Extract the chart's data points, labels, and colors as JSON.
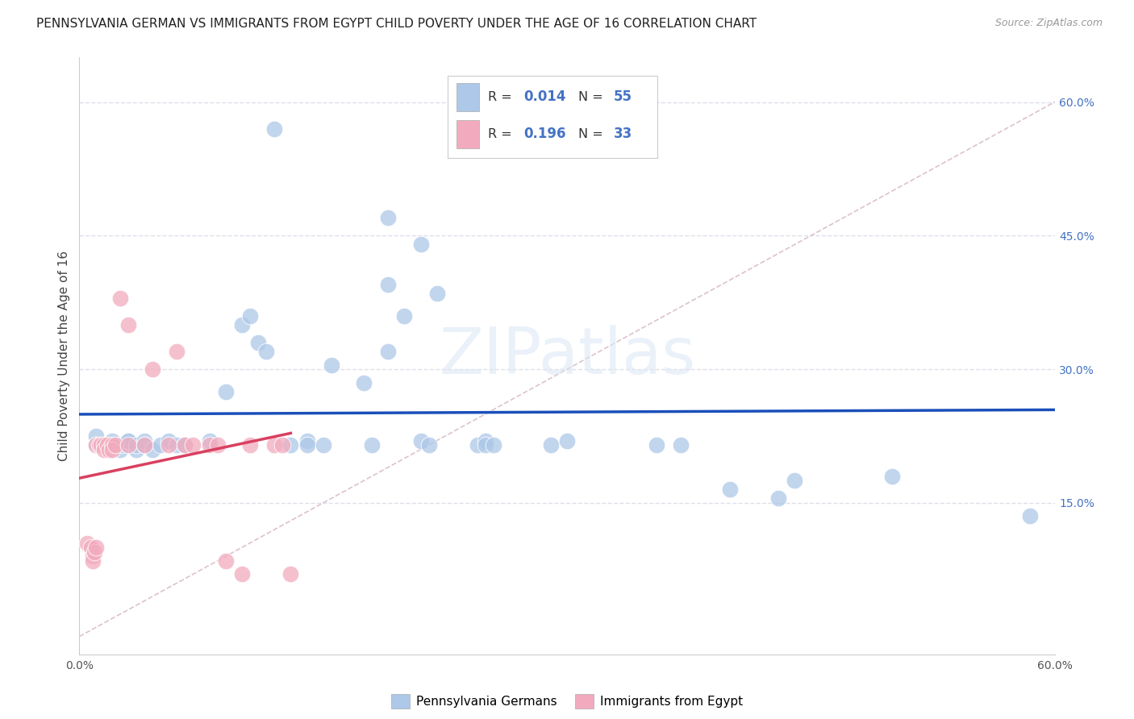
{
  "title": "PENNSYLVANIA GERMAN VS IMMIGRANTS FROM EGYPT CHILD POVERTY UNDER THE AGE OF 16 CORRELATION CHART",
  "source": "Source: ZipAtlas.com",
  "ylabel": "Child Poverty Under the Age of 16",
  "xlim": [
    0.0,
    0.6
  ],
  "ylim": [
    -0.02,
    0.65
  ],
  "ytick_right_labels": [
    "60.0%",
    "45.0%",
    "30.0%",
    "15.0%"
  ],
  "ytick_right_values": [
    0.6,
    0.45,
    0.3,
    0.15
  ],
  "blue_color": "#adc8e8",
  "pink_color": "#f2abbe",
  "blue_line_color": "#1a4fba",
  "pink_line_color": "#d94060",
  "diag_line_color": "#d8bcc8",
  "grid_color": "#e0e0ea",
  "background_color": "#ffffff",
  "blue_scatter_x": [
    0.12,
    0.19,
    0.21,
    0.19,
    0.22,
    0.01,
    0.01,
    0.015,
    0.02,
    0.02,
    0.025,
    0.025,
    0.03,
    0.03,
    0.03,
    0.035,
    0.035,
    0.04,
    0.04,
    0.045,
    0.05,
    0.055,
    0.06,
    0.065,
    0.08,
    0.09,
    0.1,
    0.105,
    0.11,
    0.115,
    0.13,
    0.14,
    0.14,
    0.15,
    0.155,
    0.175,
    0.18,
    0.19,
    0.2,
    0.21,
    0.215,
    0.245,
    0.25,
    0.25,
    0.255,
    0.29,
    0.3,
    0.355,
    0.37,
    0.4,
    0.43,
    0.44,
    0.5,
    0.585
  ],
  "blue_scatter_y": [
    0.57,
    0.47,
    0.44,
    0.395,
    0.385,
    0.225,
    0.215,
    0.215,
    0.215,
    0.22,
    0.21,
    0.215,
    0.215,
    0.22,
    0.22,
    0.21,
    0.215,
    0.22,
    0.215,
    0.21,
    0.215,
    0.22,
    0.215,
    0.215,
    0.22,
    0.275,
    0.35,
    0.36,
    0.33,
    0.32,
    0.215,
    0.22,
    0.215,
    0.215,
    0.305,
    0.285,
    0.215,
    0.32,
    0.36,
    0.22,
    0.215,
    0.215,
    0.22,
    0.215,
    0.215,
    0.215,
    0.22,
    0.215,
    0.215,
    0.165,
    0.155,
    0.175,
    0.18,
    0.135
  ],
  "pink_scatter_x": [
    0.005,
    0.007,
    0.008,
    0.008,
    0.009,
    0.01,
    0.01,
    0.012,
    0.013,
    0.015,
    0.015,
    0.017,
    0.018,
    0.02,
    0.02,
    0.022,
    0.025,
    0.03,
    0.03,
    0.04,
    0.045,
    0.055,
    0.06,
    0.065,
    0.07,
    0.08,
    0.085,
    0.09,
    0.1,
    0.105,
    0.12,
    0.125,
    0.13
  ],
  "pink_scatter_y": [
    0.105,
    0.1,
    0.09,
    0.085,
    0.095,
    0.1,
    0.215,
    0.215,
    0.215,
    0.215,
    0.21,
    0.215,
    0.21,
    0.215,
    0.21,
    0.215,
    0.38,
    0.35,
    0.215,
    0.215,
    0.3,
    0.215,
    0.32,
    0.215,
    0.215,
    0.215,
    0.215,
    0.085,
    0.07,
    0.215,
    0.215,
    0.215,
    0.07
  ],
  "title_fontsize": 11,
  "axis_label_fontsize": 11,
  "tick_fontsize": 10,
  "watermark_text": "ZIPatlas"
}
